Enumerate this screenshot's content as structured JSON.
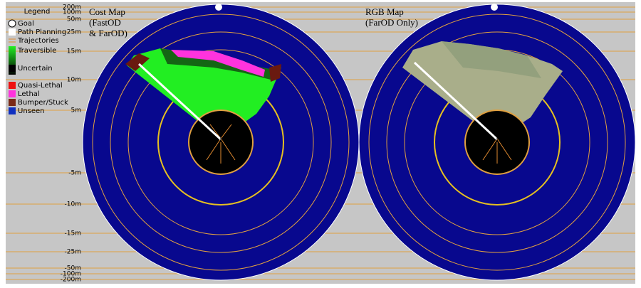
{
  "legend": {
    "title": "Legend",
    "items": [
      "Goal",
      "Path Planning",
      "Trajectories",
      "Traversible",
      "Uncertain",
      "Quasi-Lethal",
      "Lethal",
      "Bumper/Stuck",
      "Unseen"
    ]
  },
  "panels": [
    {
      "title_lines": [
        "Cost Map",
        "(FastOD",
        "& FarOD)"
      ]
    },
    {
      "title_lines": [
        "RGB Map",
        "(FarOD Only)"
      ]
    }
  ],
  "range_labels": [
    "200m",
    "100m",
    "50m",
    "25m",
    "15m",
    "10m",
    "5m",
    "-5m",
    "-10m",
    "-15m",
    "-25m",
    "-50m",
    "-100m",
    "-200m"
  ]
}
